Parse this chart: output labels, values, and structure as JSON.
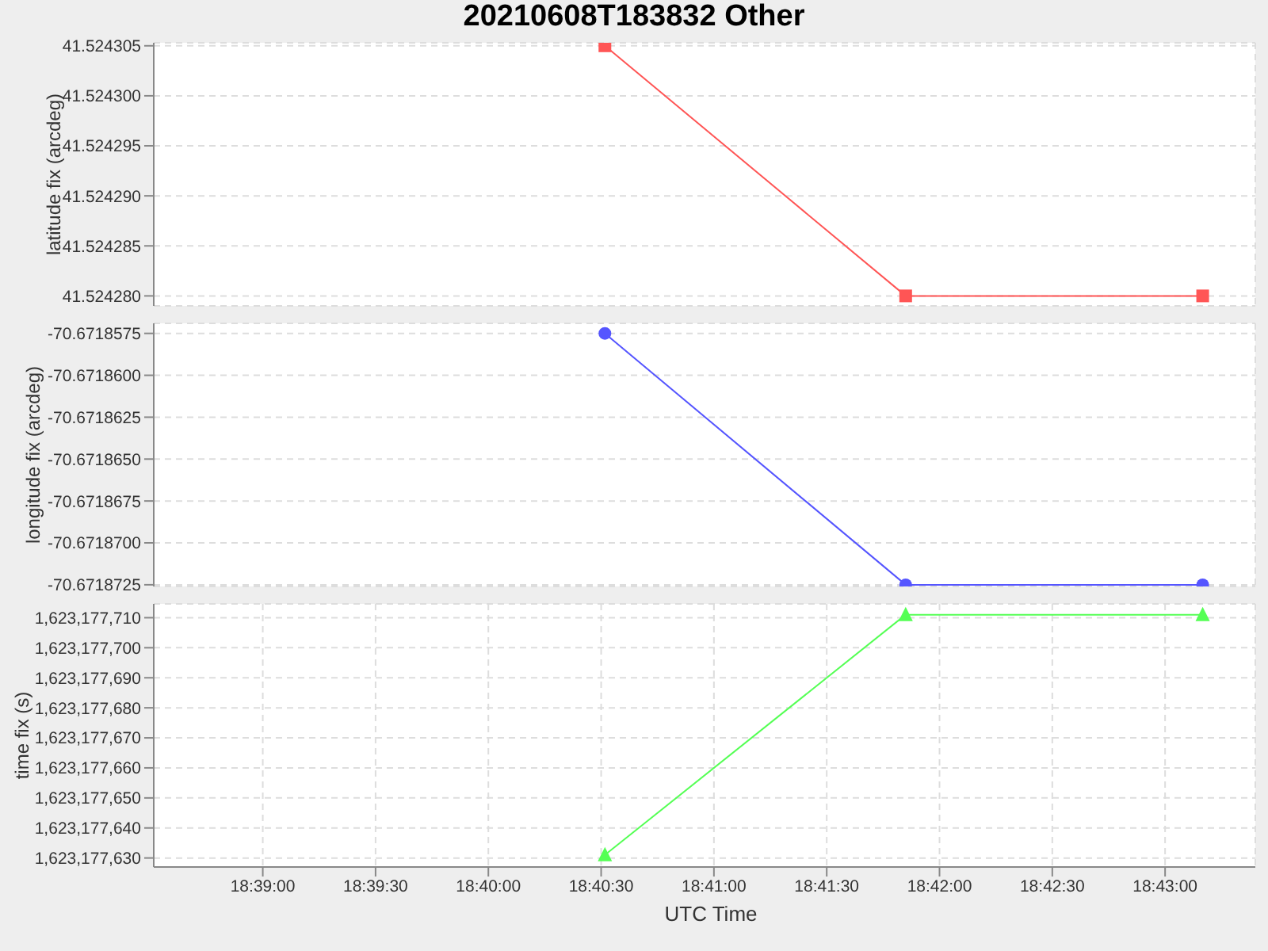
{
  "chart_data": [
    {
      "type": "line",
      "title": "20210608T183832 Other",
      "ylabel": "latitude fix (arcdeg)",
      "x": [
        "2021-06-08T18:40:31",
        "2021-06-08T18:41:51",
        "2021-06-08T18:43:10"
      ],
      "xlim": [
        "2021-06-08T18:38:31",
        "2021-06-08T18:43:24"
      ],
      "ylim": [
        41.524279,
        41.5243053
      ],
      "yticks": [
        {
          "value": 41.52428,
          "label": "41.524280"
        },
        41.524285,
        {
          "value": 41.52429,
          "label": "41.524290"
        },
        41.524295,
        {
          "value": 41.5243,
          "label": "41.524300"
        },
        41.524305
      ],
      "series": [
        {
          "color": "#ff5555",
          "values": [
            41.524305,
            41.52428,
            41.52428
          ]
        }
      ],
      "marker": "square",
      "grid": true,
      "tick_labels": "y",
      "legend": false
    },
    {
      "type": "line",
      "ylabel": "longitude fix (arcdeg)",
      "x": [
        "2021-06-08T18:40:31",
        "2021-06-08T18:41:51",
        "2021-06-08T18:43:10"
      ],
      "xlim": [
        "2021-06-08T18:38:31",
        "2021-06-08T18:43:24"
      ],
      "ylim": [
        -70.6718726,
        -70.6718569
      ],
      "yticks": [
        {
          "value": -70.6718725,
          "label": "-70.6718725"
        },
        {
          "value": -70.67187,
          "label": "-70.6718700"
        },
        {
          "value": -70.6718675,
          "label": "-70.6718675"
        },
        {
          "value": -70.671865,
          "label": "-70.6718650"
        },
        {
          "value": -70.6718625,
          "label": "-70.6718625"
        },
        {
          "value": -70.67186,
          "label": "-70.6718600"
        },
        {
          "value": -70.6718575,
          "label": "-70.6718575"
        }
      ],
      "series": [
        {
          "color": "#5555ff",
          "values": [
            -70.6718575,
            -70.6718725,
            -70.6718725
          ]
        }
      ],
      "marker": "circle",
      "grid": true,
      "tick_labels": "y",
      "legend": false
    },
    {
      "type": "line",
      "ylabel": "time fix (s)",
      "xlabel": "UTC Time",
      "x": [
        "2021-06-08T18:40:31",
        "2021-06-08T18:41:51",
        "2021-06-08T18:43:10"
      ],
      "xlim": [
        "2021-06-08T18:38:31",
        "2021-06-08T18:43:24"
      ],
      "xticks": [
        {
          "value": "2021-06-08T18:39:00",
          "label": "18:39:00"
        },
        {
          "value": "2021-06-08T18:39:30",
          "label": "18:39:30"
        },
        {
          "value": "2021-06-08T18:40:00",
          "label": "18:40:00"
        },
        {
          "value": "2021-06-08T18:40:30",
          "label": "18:40:30"
        },
        {
          "value": "2021-06-08T18:41:00",
          "label": "18:41:00"
        },
        {
          "value": "2021-06-08T18:41:30",
          "label": "18:41:30"
        },
        {
          "value": "2021-06-08T18:42:00",
          "label": "18:42:00"
        },
        {
          "value": "2021-06-08T18:42:30",
          "label": "18:42:30"
        },
        {
          "value": "2021-06-08T18:43:00",
          "label": "18:43:00"
        }
      ],
      "ylim": [
        1623177627,
        1623177714.6
      ],
      "yticks": [
        {
          "value": 1623177630,
          "label": "1,623,177,630"
        },
        {
          "value": 1623177640,
          "label": "1,623,177,640"
        },
        {
          "value": 1623177650,
          "label": "1,623,177,650"
        },
        {
          "value": 1623177660,
          "label": "1,623,177,660"
        },
        {
          "value": 1623177670,
          "label": "1,623,177,670"
        },
        {
          "value": 1623177680,
          "label": "1,623,177,680"
        },
        {
          "value": 1623177690,
          "label": "1,623,177,690"
        },
        {
          "value": 1623177700,
          "label": "1,623,177,700"
        },
        {
          "value": 1623177710,
          "label": "1,623,177,710"
        }
      ],
      "series": [
        {
          "color": "#55ff55",
          "values": [
            1623177631,
            1623177711,
            1623177711
          ]
        }
      ],
      "marker": "triangle",
      "grid": true,
      "legend": false
    }
  ]
}
